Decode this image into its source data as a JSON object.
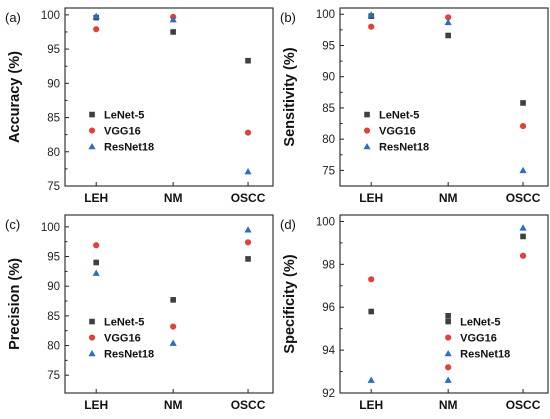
{
  "chart_data": [
    {
      "type": "scatter",
      "panel": "(a)",
      "title": "",
      "xlabel": "",
      "ylabel": "Accuracy (%)",
      "categories": [
        "LEH",
        "NM",
        "OSCC"
      ],
      "ylim": [
        75,
        101
      ],
      "yticks": [
        75,
        80,
        85,
        90,
        95,
        100
      ],
      "legend": "bottom-left",
      "grid": false,
      "series": [
        {
          "name": "LeNet-5",
          "marker": "square",
          "color": "#3f3f3f",
          "values": [
            99.6,
            97.5,
            93.3
          ]
        },
        {
          "name": "VGG16",
          "marker": "circle",
          "color": "#e0413a",
          "values": [
            97.9,
            99.7,
            82.8
          ]
        },
        {
          "name": "ResNet18",
          "marker": "triangle",
          "color": "#2a6fc2",
          "values": [
            99.8,
            99.3,
            77.1
          ]
        }
      ]
    },
    {
      "type": "scatter",
      "panel": "(b)",
      "title": "",
      "xlabel": "",
      "ylabel": "Sensitivity (%)",
      "categories": [
        "LEH",
        "NM",
        "OSCC"
      ],
      "ylim": [
        72.5,
        101
      ],
      "yticks": [
        75,
        80,
        85,
        90,
        95,
        100
      ],
      "legend": "bottom-left",
      "grid": false,
      "series": [
        {
          "name": "LeNet-5",
          "marker": "square",
          "color": "#3f3f3f",
          "values": [
            99.7,
            96.6,
            85.8
          ]
        },
        {
          "name": "VGG16",
          "marker": "circle",
          "color": "#e0413a",
          "values": [
            98.0,
            99.5,
            82.1
          ]
        },
        {
          "name": "ResNet18",
          "marker": "triangle",
          "color": "#2a6fc2",
          "values": [
            99.9,
            98.7,
            75.0
          ]
        }
      ]
    },
    {
      "type": "scatter",
      "panel": "(c)",
      "title": "",
      "xlabel": "",
      "ylabel": "Precision (%)",
      "categories": [
        "LEH",
        "NM",
        "OSCC"
      ],
      "ylim": [
        72,
        102
      ],
      "yticks": [
        75,
        80,
        85,
        90,
        95,
        100
      ],
      "legend": "bottom-left",
      "grid": false,
      "series": [
        {
          "name": "LeNet-5",
          "marker": "square",
          "color": "#3f3f3f",
          "values": [
            94.0,
            87.7,
            94.6
          ]
        },
        {
          "name": "VGG16",
          "marker": "circle",
          "color": "#e0413a",
          "values": [
            96.9,
            83.2,
            97.4
          ]
        },
        {
          "name": "ResNet18",
          "marker": "triangle",
          "color": "#2a6fc2",
          "values": [
            92.2,
            80.4,
            99.5
          ]
        }
      ]
    },
    {
      "type": "scatter",
      "panel": "(d)",
      "title": "",
      "xlabel": "",
      "ylabel": "Specificity (%)",
      "categories": [
        "LEH",
        "NM",
        "OSCC"
      ],
      "ylim": [
        92,
        100.3
      ],
      "yticks": [
        92,
        94,
        96,
        98,
        100
      ],
      "legend": "bottom-right",
      "grid": false,
      "series": [
        {
          "name": "LeNet-5",
          "marker": "square",
          "color": "#3f3f3f",
          "values": [
            95.8,
            95.6,
            99.3
          ]
        },
        {
          "name": "VGG16",
          "marker": "circle",
          "color": "#e0413a",
          "values": [
            97.3,
            93.2,
            98.4
          ]
        },
        {
          "name": "ResNet18",
          "marker": "triangle",
          "color": "#2a6fc2",
          "values": [
            92.6,
            92.6,
            99.7
          ]
        }
      ]
    }
  ]
}
